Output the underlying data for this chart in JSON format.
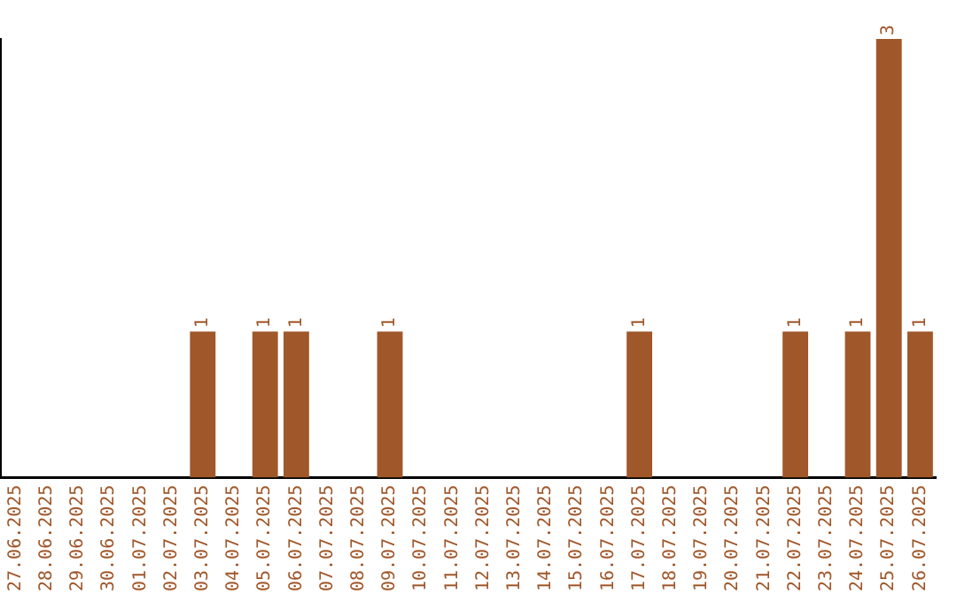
{
  "chart_data": {
    "type": "bar",
    "categories": [
      "27.06.2025",
      "28.06.2025",
      "29.06.2025",
      "30.06.2025",
      "01.07.2025",
      "02.07.2025",
      "03.07.2025",
      "04.07.2025",
      "05.07.2025",
      "06.07.2025",
      "07.07.2025",
      "08.07.2025",
      "09.07.2025",
      "10.07.2025",
      "11.07.2025",
      "12.07.2025",
      "13.07.2025",
      "14.07.2025",
      "15.07.2025",
      "16.07.2025",
      "17.07.2025",
      "18.07.2025",
      "19.07.2025",
      "20.07.2025",
      "21.07.2025",
      "22.07.2025",
      "23.07.2025",
      "24.07.2025",
      "25.07.2025",
      "26.07.2025"
    ],
    "values": [
      0,
      0,
      0,
      0,
      0,
      0,
      1,
      0,
      1,
      1,
      0,
      0,
      1,
      0,
      0,
      0,
      0,
      0,
      0,
      0,
      1,
      0,
      0,
      0,
      0,
      1,
      0,
      1,
      3,
      1
    ],
    "value_labels": [
      null,
      null,
      null,
      null,
      null,
      null,
      "1",
      null,
      "1",
      "1",
      null,
      null,
      "1",
      null,
      null,
      null,
      null,
      null,
      null,
      null,
      "1",
      null,
      null,
      null,
      null,
      "1",
      null,
      "1",
      "3",
      "1"
    ],
    "color": "#a0572a",
    "grid": false,
    "legend": false,
    "tick_labels": "x"
  }
}
